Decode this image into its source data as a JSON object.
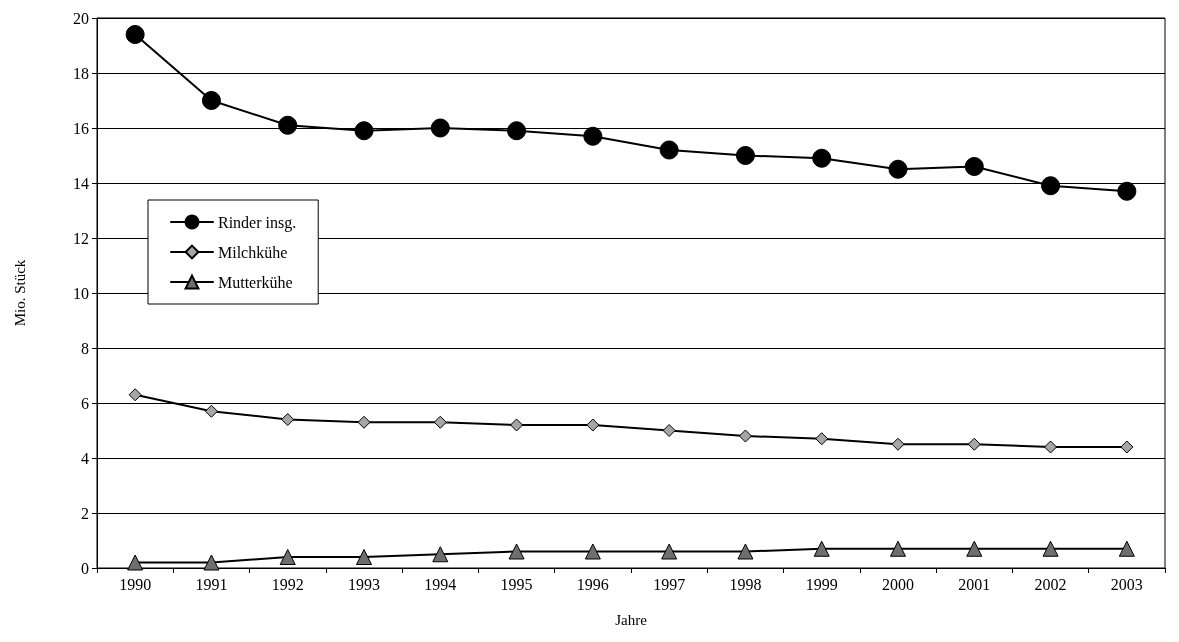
{
  "chart_data": {
    "type": "line",
    "xlabel": "Jahre",
    "ylabel": "Mio. Stück",
    "categories": [
      "1990",
      "1991",
      "1992",
      "1993",
      "1994",
      "1995",
      "1996",
      "1997",
      "1998",
      "1999",
      "2000",
      "2001",
      "2002",
      "2003"
    ],
    "series": [
      {
        "name": "Rinder insg.",
        "color": "#000000",
        "marker": "circle",
        "values": [
          19.4,
          17.0,
          16.1,
          15.9,
          16.0,
          15.9,
          15.7,
          15.2,
          15.0,
          14.9,
          14.5,
          14.6,
          13.9,
          13.7
        ]
      },
      {
        "name": "Milchkühe",
        "color": "#a6a6a6",
        "marker": "diamond",
        "values": [
          6.3,
          5.7,
          5.4,
          5.3,
          5.3,
          5.2,
          5.2,
          5.0,
          4.8,
          4.7,
          4.5,
          4.5,
          4.4,
          4.4
        ]
      },
      {
        "name": "Mutterkühe",
        "color": "#6e6e6e",
        "marker": "triangle",
        "values": [
          0.2,
          0.2,
          0.4,
          0.4,
          0.5,
          0.6,
          0.6,
          0.6,
          0.6,
          0.7,
          0.7,
          0.7,
          0.7,
          0.7
        ]
      }
    ],
    "ylim": [
      0,
      20
    ],
    "yticks": [
      0,
      2,
      4,
      6,
      8,
      10,
      12,
      14,
      16,
      18,
      20
    ],
    "grid": "y",
    "legend": "left",
    "line_style": "solid"
  }
}
